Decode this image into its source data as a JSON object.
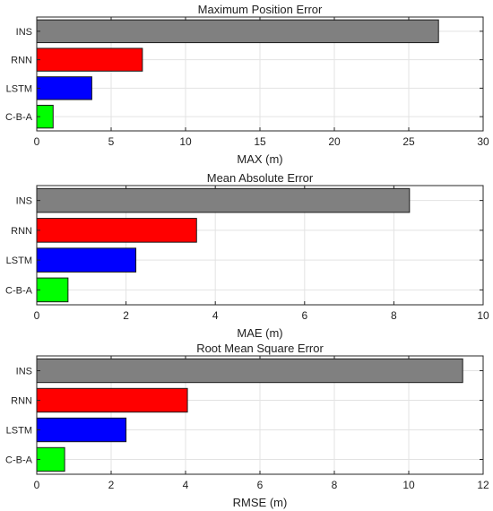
{
  "chart_data": [
    {
      "type": "bar",
      "orientation": "horizontal",
      "title": "Maximum Position Error",
      "xlabel": "MAX (m)",
      "ylabel": "",
      "categories": [
        "INS",
        "RNN",
        "LSTM",
        "C-B-A"
      ],
      "values": [
        27.0,
        7.1,
        3.7,
        1.1
      ],
      "colors": [
        "#808080",
        "#ff0000",
        "#0000ff",
        "#00ff00"
      ],
      "xlim": [
        0,
        30
      ],
      "xticks": [
        0,
        5,
        10,
        15,
        20,
        25,
        30
      ],
      "grid": true
    },
    {
      "type": "bar",
      "orientation": "horizontal",
      "title": "Mean Absolute Error",
      "xlabel": "MAE (m)",
      "ylabel": "",
      "categories": [
        "INS",
        "RNN",
        "LSTM",
        "C-B-A"
      ],
      "values": [
        8.35,
        3.58,
        2.22,
        0.7
      ],
      "colors": [
        "#808080",
        "#ff0000",
        "#0000ff",
        "#00ff00"
      ],
      "xlim": [
        0,
        10
      ],
      "xticks": [
        0,
        2,
        4,
        6,
        8,
        10
      ],
      "grid": true
    },
    {
      "type": "bar",
      "orientation": "horizontal",
      "title": "Root Mean Square Error",
      "xlabel": "RMSE (m)",
      "ylabel": "",
      "categories": [
        "INS",
        "RNN",
        "LSTM",
        "C-B-A"
      ],
      "values": [
        11.45,
        4.05,
        2.4,
        0.75
      ],
      "colors": [
        "#808080",
        "#ff0000",
        "#0000ff",
        "#00ff00"
      ],
      "xlim": [
        0,
        12
      ],
      "xticks": [
        0,
        2,
        4,
        6,
        8,
        10,
        12
      ],
      "grid": true
    }
  ]
}
